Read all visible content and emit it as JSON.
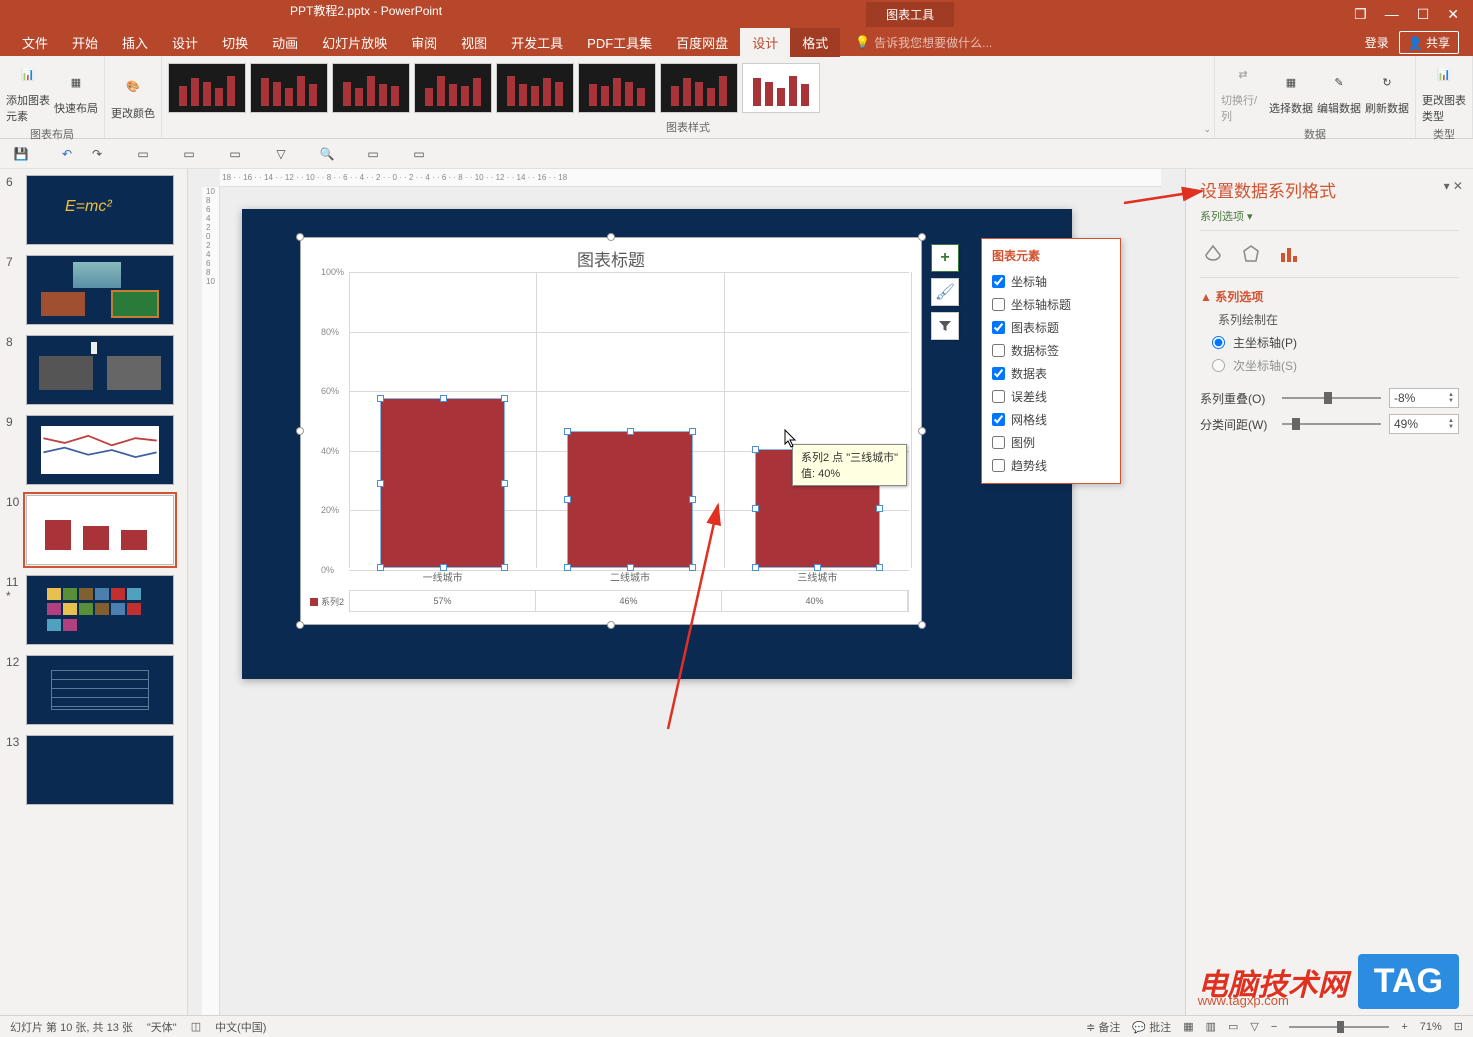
{
  "titlebar": {
    "doc_title": "PPT教程2.pptx - PowerPoint",
    "tool_tab": "图表工具",
    "win_restore": "❐",
    "win_min": "—",
    "win_max": "☐",
    "win_close": "✕"
  },
  "menubar": {
    "tabs": [
      "文件",
      "开始",
      "插入",
      "设计",
      "切换",
      "动画",
      "幻灯片放映",
      "审阅",
      "视图",
      "开发工具",
      "PDF工具集",
      "百度网盘"
    ],
    "sub_tabs": [
      "设计",
      "格式"
    ],
    "active_sub": 0,
    "tell_me": "告诉我您想要做什么...",
    "login": "登录",
    "share": "共享"
  },
  "ribbon": {
    "groups": {
      "layout": {
        "label": "图表布局",
        "add_element": "添加图表元素",
        "quick_layout": "快速布局"
      },
      "colors": {
        "label": "",
        "change_colors": "更改颜色"
      },
      "styles": {
        "label": "图表样式"
      },
      "data": {
        "label": "数据",
        "switch": "切换行/列",
        "select": "选择数据",
        "edit": "编辑数据",
        "refresh": "刷新数据"
      },
      "type": {
        "label": "类型",
        "change_type": "更改图表类型"
      }
    },
    "chart_styles": {
      "count": 8,
      "dark_bg": "#1a1a1a",
      "light_bg": "#ffffff",
      "bar_color": "#a8343a"
    }
  },
  "qat": {
    "items": [
      "save",
      "undo",
      "redo",
      "",
      "slide",
      "",
      "start",
      "",
      "present",
      "",
      "find",
      "",
      "mic",
      "",
      "addin"
    ]
  },
  "slides": {
    "current": 10,
    "total": 13,
    "list": [
      {
        "n": 6,
        "type": "formula"
      },
      {
        "n": 7,
        "type": "photos"
      },
      {
        "n": 8,
        "type": "bw-photos"
      },
      {
        "n": 9,
        "type": "line-chart"
      },
      {
        "n": 10,
        "type": "bar-chart",
        "selected": true
      },
      {
        "n": 11,
        "type": "grid",
        "star": true
      },
      {
        "n": 12,
        "type": "table"
      },
      {
        "n": 13,
        "type": "blank"
      }
    ]
  },
  "chart": {
    "title": "图表标题",
    "type": "bar",
    "categories": [
      "一线城市",
      "二线城市",
      "三线城市"
    ],
    "values": [
      57,
      46,
      40
    ],
    "value_labels": [
      "57%",
      "46%",
      "40%"
    ],
    "series_name": "系列2",
    "y_ticks": [
      0,
      20,
      40,
      60,
      80,
      100
    ],
    "y_tick_labels": [
      "0%",
      "20%",
      "40%",
      "60%",
      "80%",
      "100%"
    ],
    "ylim": [
      0,
      100
    ],
    "bar_color": "#a8343a",
    "selection_handle_color": "#4a90d9",
    "grid_color": "#d9d9d9",
    "slide_bg": "#0b2a52",
    "chart_bg": "#ffffff"
  },
  "chart_tools": {
    "plus": "+",
    "brush": "✎",
    "filter": "▼"
  },
  "chart_elements": {
    "title": "图表元素",
    "items": [
      {
        "label": "坐标轴",
        "checked": true
      },
      {
        "label": "坐标轴标题",
        "checked": false
      },
      {
        "label": "图表标题",
        "checked": true
      },
      {
        "label": "数据标签",
        "checked": false
      },
      {
        "label": "数据表",
        "checked": true
      },
      {
        "label": "误差线",
        "checked": false
      },
      {
        "label": "网格线",
        "checked": true
      },
      {
        "label": "图例",
        "checked": false
      },
      {
        "label": "趋势线",
        "checked": false
      }
    ]
  },
  "tooltip": {
    "line1": "系列2 点 \"三线城市\"",
    "line2": "值: 40%"
  },
  "format_pane": {
    "title": "设置数据系列格式",
    "subtitle": "系列选项",
    "section": "系列选项",
    "plot_on_label": "系列绘制在",
    "primary_axis": "主坐标轴(P)",
    "secondary_axis": "次坐标轴(S)",
    "series_overlap_label": "系列重叠(O)",
    "series_overlap_value": "-8%",
    "gap_width_label": "分类间距(W)",
    "gap_width_value": "49%",
    "accent_color": "#d35230"
  },
  "statusbar": {
    "slide_info": "幻灯片 第 10 张, 共 13 张",
    "theme": "\"天体\"",
    "lang_icon": "◫",
    "lang": "中文(中国)",
    "notes": "备注",
    "comments": "批注",
    "zoom_minus": "−",
    "zoom_plus": "+",
    "zoom": "71%",
    "fit": "⊡"
  },
  "watermark": {
    "text": "电脑技术网",
    "url": "www.tagxp.com",
    "tag": "TAG"
  },
  "colors": {
    "app_primary": "#b7472a",
    "app_dark": "#a03c23"
  }
}
